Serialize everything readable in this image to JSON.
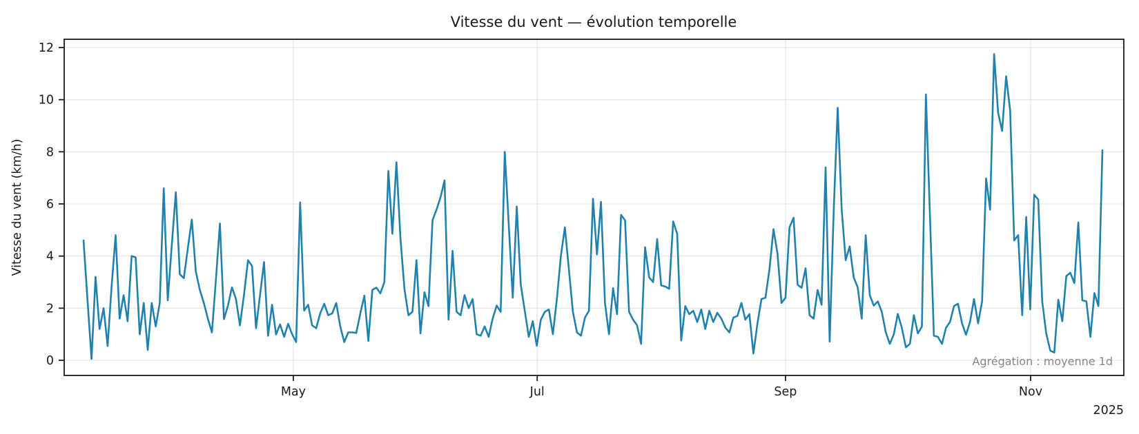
{
  "figure": {
    "background": "#ffffff"
  },
  "chart_data": {
    "type": "line",
    "title": "Vitesse du vent — évolution temporelle",
    "ylabel": "Vitesse du vent (km/h)",
    "xlabel": "",
    "annotation": "Agrégation : moyenne 1d",
    "year_label": "2025",
    "unit": "km/h",
    "frequency": "daily mean (aggregation 1d)",
    "x_start_date_approx": "2025-03-10",
    "x_end_date_approx": "2025-11-19",
    "grid": true,
    "legend": "none",
    "line_color": "#1f81ad",
    "text_color": "#1a1a1a",
    "spine_color": "#1a1a1a",
    "annotation_color": "#858585",
    "grid_color": "#e6e6e6",
    "ylim": [
      -0.6,
      12.35
    ],
    "y_ticks": [
      0,
      2,
      4,
      6,
      8,
      10,
      12
    ],
    "x_ticks": [
      {
        "label": "May",
        "index": 52.3
      },
      {
        "label": "Jul",
        "index": 113.1
      },
      {
        "label": "Sep",
        "index": 175.0
      },
      {
        "label": "Nov",
        "index": 236.1
      }
    ],
    "values": [
      4.6,
      2.3,
      0.05,
      3.2,
      1.2,
      2.0,
      0.55,
      2.85,
      4.8,
      1.6,
      2.5,
      1.5,
      4.0,
      3.95,
      1.0,
      2.2,
      0.4,
      2.2,
      1.3,
      2.2,
      6.6,
      2.3,
      4.4,
      6.45,
      3.3,
      3.15,
      4.3,
      5.4,
      3.4,
      2.7,
      2.2,
      1.6,
      1.07,
      3.1,
      5.25,
      1.58,
      2.1,
      2.8,
      2.35,
      1.34,
      2.5,
      3.84,
      3.62,
      1.23,
      2.5,
      3.77,
      0.94,
      2.13,
      0.99,
      1.38,
      0.9,
      1.4,
      1.0,
      0.7,
      6.06,
      1.91,
      2.13,
      1.34,
      1.23,
      1.8,
      2.17,
      1.73,
      1.8,
      2.2,
      1.3,
      0.7,
      1.07,
      1.07,
      1.05,
      1.8,
      2.48,
      0.74,
      2.7,
      2.79,
      2.57,
      3.0,
      7.27,
      4.85,
      7.6,
      4.68,
      2.74,
      1.73,
      1.86,
      3.84,
      1.03,
      2.61,
      2.08,
      5.38,
      5.78,
      6.26,
      6.9,
      1.56,
      4.2,
      1.86,
      1.73,
      2.5,
      2.0,
      2.35,
      1.0,
      0.94,
      1.3,
      0.9,
      1.6,
      2.1,
      1.86,
      8.0,
      5.2,
      2.4,
      5.9,
      2.9,
      1.9,
      0.9,
      1.5,
      0.56,
      1.56,
      1.86,
      1.95,
      1.0,
      2.35,
      4.0,
      5.1,
      3.5,
      1.86,
      1.07,
      0.94,
      1.64,
      1.9,
      6.2,
      4.06,
      6.08,
      2.2,
      1.0,
      2.77,
      1.77,
      5.58,
      5.37,
      1.86,
      1.56,
      1.34,
      0.63,
      4.34,
      3.18,
      3.0,
      4.65,
      2.87,
      2.83,
      2.74,
      5.33,
      4.85,
      0.76,
      2.08,
      1.77,
      1.9,
      1.47,
      1.95,
      1.2,
      1.9,
      1.47,
      1.82,
      1.6,
      1.25,
      1.07,
      1.64,
      1.7,
      2.2,
      1.56,
      1.77,
      0.26,
      1.42,
      2.35,
      2.4,
      3.5,
      5.03,
      4.1,
      2.2,
      2.4,
      5.1,
      5.47,
      2.9,
      2.78,
      3.53,
      1.73,
      1.6,
      2.7,
      2.13,
      7.4,
      0.72,
      5.7,
      9.69,
      5.78,
      3.84,
      4.37,
      3.18,
      2.8,
      1.6,
      4.8,
      2.5,
      2.1,
      2.26,
      1.86,
      1.07,
      0.63,
      1.0,
      1.78,
      1.25,
      0.5,
      0.63,
      1.73,
      1.03,
      1.3,
      10.2,
      5.6,
      0.94,
      0.9,
      0.63,
      1.25,
      1.47,
      2.08,
      2.17,
      1.42,
      0.98,
      1.47,
      2.35,
      1.42,
      2.26,
      6.98,
      5.78,
      11.75,
      9.5,
      8.8,
      10.9,
      9.6,
      4.6,
      4.8,
      1.73,
      5.5,
      1.95,
      6.35,
      6.17,
      2.26,
      1.03,
      0.37,
      0.3,
      2.32,
      1.5,
      3.23,
      3.36,
      2.96,
      5.29,
      2.3,
      2.26,
      0.9,
      2.58,
      2.08,
      8.06
    ]
  }
}
